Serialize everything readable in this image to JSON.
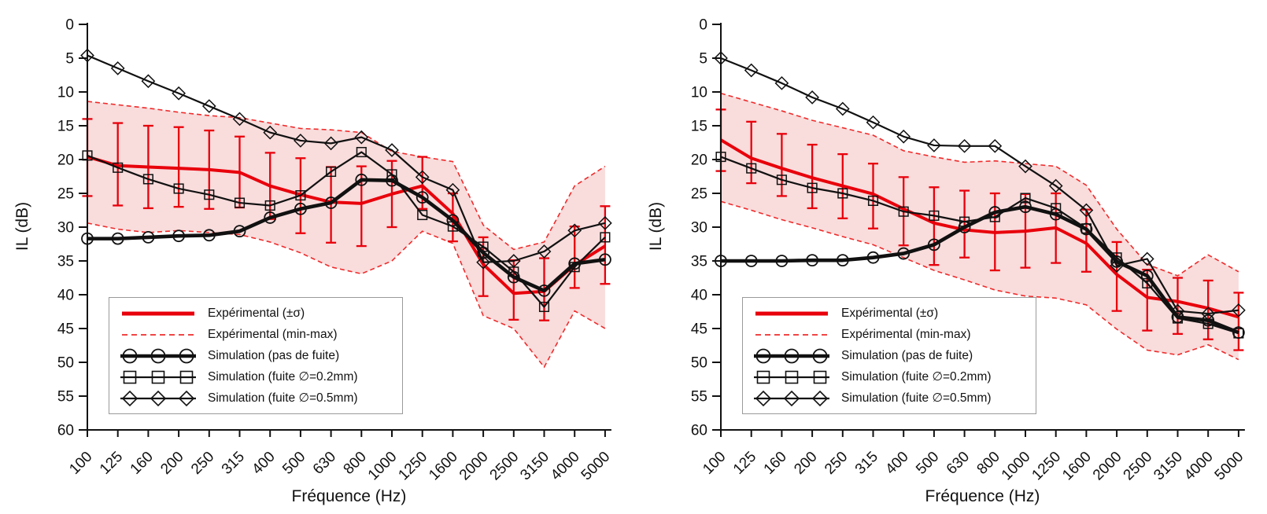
{
  "figure": {
    "description": "Deux graphiques de perte par insertion (IL) mesurée et simulée en bandes de tiers d'octave",
    "background": "#ffffff"
  },
  "chart_data": [
    {
      "type": "line",
      "panel": "left",
      "title": "",
      "xlabel": "Fréquence (Hz)",
      "ylabel": "IL (dB)",
      "x_categories": [
        "100",
        "125",
        "160",
        "200",
        "250",
        "315",
        "400",
        "500",
        "630",
        "800",
        "1000",
        "1250",
        "1600",
        "2000",
        "2500",
        "3150",
        "4000",
        "5000"
      ],
      "ylim": [
        0,
        60
      ],
      "y_inverted": true,
      "y_tick_step": 5,
      "grid": false,
      "legend_position": "lower-left",
      "colors": {
        "experimental": "#e8000b",
        "simulation": "#111111",
        "band_fill": "#f9dcdc",
        "band_edge": "#ef2b2b"
      },
      "series": [
        {
          "name": "Expérimental (±σ)",
          "role": "exp_mean",
          "style": "thick-solid-red",
          "values": [
            19.6,
            20.9,
            21.1,
            21.3,
            21.5,
            21.9,
            23.9,
            25.2,
            26.3,
            26.5,
            25.1,
            23.9,
            28.0,
            35.5,
            39.8,
            39.5,
            35.6,
            32.8
          ],
          "err_low": [
            14.0,
            14.6,
            15.0,
            15.2,
            15.7,
            16.6,
            19.0,
            19.8,
            21.1,
            21.0,
            20.2,
            19.6,
            25.0,
            31.5,
            34.9,
            34.6,
            29.9,
            26.9
          ],
          "err_high": [
            25.4,
            26.8,
            27.2,
            27.0,
            27.3,
            27.1,
            28.8,
            30.9,
            32.3,
            32.8,
            30.0,
            27.3,
            32.1,
            40.2,
            43.7,
            43.8,
            39.0,
            38.4
          ]
        },
        {
          "name": "Expérimental (min-max)",
          "role": "exp_minmax",
          "style": "dashed-red-band",
          "min": [
            11.4,
            11.9,
            12.4,
            13.0,
            13.5,
            13.8,
            14.6,
            15.4,
            15.6,
            16.0,
            18.8,
            19.6,
            20.3,
            29.7,
            33.3,
            32.2,
            23.9,
            21.0
          ],
          "max": [
            29.4,
            30.3,
            30.8,
            30.5,
            30.8,
            31.1,
            32.2,
            33.8,
            35.9,
            36.9,
            35.0,
            30.6,
            32.4,
            43.1,
            45.0,
            50.7,
            42.4,
            45.0
          ]
        },
        {
          "name": "Simulation (pas de fuite)",
          "role": "sim_noleak",
          "marker": "circle",
          "style": "thick-black",
          "values": [
            31.7,
            31.7,
            31.5,
            31.3,
            31.2,
            30.6,
            28.6,
            27.3,
            26.4,
            23.0,
            23.1,
            25.6,
            29.0,
            33.8,
            37.4,
            39.4,
            35.4,
            34.8
          ]
        },
        {
          "name": "Simulation (fuite ∅=0.2mm)",
          "role": "sim_leak_02mm",
          "marker": "square",
          "style": "thin-black",
          "values": [
            19.4,
            21.2,
            22.9,
            24.3,
            25.2,
            26.4,
            26.8,
            25.3,
            21.8,
            18.9,
            22.2,
            28.2,
            29.9,
            32.9,
            36.6,
            41.8,
            35.9,
            31.5
          ]
        },
        {
          "name": "Simulation (fuite ∅=0.5mm)",
          "role": "sim_leak_05mm",
          "marker": "diamond",
          "style": "thin-black",
          "values": [
            4.6,
            6.5,
            8.4,
            10.2,
            12.1,
            14.0,
            16.0,
            17.2,
            17.6,
            16.7,
            18.6,
            22.6,
            24.5,
            35.2,
            35.0,
            33.6,
            30.5,
            29.4
          ]
        }
      ]
    },
    {
      "type": "line",
      "panel": "right",
      "title": "",
      "xlabel": "Fréquence (Hz)",
      "ylabel": "IL (dB)",
      "x_categories": [
        "100",
        "125",
        "160",
        "200",
        "250",
        "315",
        "400",
        "500",
        "630",
        "800",
        "1000",
        "1250",
        "1600",
        "2000",
        "2500",
        "3150",
        "4000",
        "5000"
      ],
      "ylim": [
        0,
        60
      ],
      "y_inverted": true,
      "y_tick_step": 5,
      "grid": false,
      "legend_position": "lower-left",
      "colors": {
        "experimental": "#e8000b",
        "simulation": "#111111",
        "band_fill": "#f9dcdc",
        "band_edge": "#ef2b2b"
      },
      "series": [
        {
          "name": "Expérimental (±σ)",
          "role": "exp_mean",
          "style": "thick-solid-red",
          "values": [
            17.1,
            19.8,
            21.3,
            22.7,
            23.9,
            25.1,
            27.3,
            29.4,
            30.4,
            30.8,
            30.6,
            30.1,
            32.4,
            37.0,
            40.4,
            41.0,
            42.0,
            43.3
          ],
          "err_low": [
            12.6,
            14.4,
            16.2,
            17.8,
            19.2,
            20.6,
            22.6,
            24.1,
            24.6,
            25.0,
            25.1,
            25.0,
            27.4,
            32.2,
            36.3,
            37.5,
            37.9,
            39.7
          ],
          "err_high": [
            21.7,
            23.5,
            25.4,
            27.2,
            28.7,
            30.2,
            32.7,
            35.6,
            34.5,
            36.4,
            36.0,
            35.3,
            36.6,
            42.4,
            45.3,
            45.8,
            46.6,
            48.2
          ]
        },
        {
          "name": "Expérimental (min-max)",
          "role": "exp_minmax",
          "style": "dashed-red-band",
          "min": [
            10.2,
            11.5,
            12.8,
            14.2,
            15.3,
            16.4,
            18.7,
            19.6,
            20.4,
            20.2,
            20.6,
            21.0,
            23.8,
            30.3,
            35.5,
            37.2,
            34.1,
            36.6
          ],
          "max": [
            26.2,
            27.5,
            28.9,
            30.1,
            31.4,
            32.6,
            34.5,
            36.4,
            37.8,
            39.3,
            40.2,
            40.5,
            41.5,
            45.1,
            48.2,
            48.9,
            47.4,
            49.6
          ]
        },
        {
          "name": "Simulation (pas de fuite)",
          "role": "sim_noleak",
          "marker": "circle",
          "style": "thick-black",
          "values": [
            35.0,
            35.0,
            35.0,
            34.9,
            34.9,
            34.5,
            33.9,
            32.6,
            30.0,
            27.8,
            27.0,
            28.1,
            30.3,
            35.1,
            37.2,
            43.3,
            43.8,
            45.6
          ]
        },
        {
          "name": "Simulation (fuite ∅=0.2mm)",
          "role": "sim_leak_02mm",
          "marker": "square",
          "style": "thin-black",
          "values": [
            19.6,
            21.3,
            23.0,
            24.2,
            25.0,
            26.1,
            27.7,
            28.3,
            29.2,
            28.5,
            25.7,
            27.2,
            30.2,
            34.5,
            38.3,
            43.5,
            44.3,
            45.7
          ]
        },
        {
          "name": "Simulation (fuite ∅=0.5mm)",
          "role": "sim_leak_05mm",
          "marker": "diamond",
          "style": "thin-black",
          "values": [
            5.0,
            6.8,
            8.7,
            10.8,
            12.5,
            14.5,
            16.6,
            17.9,
            18.0,
            18.0,
            21.0,
            23.9,
            27.5,
            35.7,
            34.7,
            42.4,
            42.8,
            42.3
          ]
        }
      ]
    }
  ]
}
